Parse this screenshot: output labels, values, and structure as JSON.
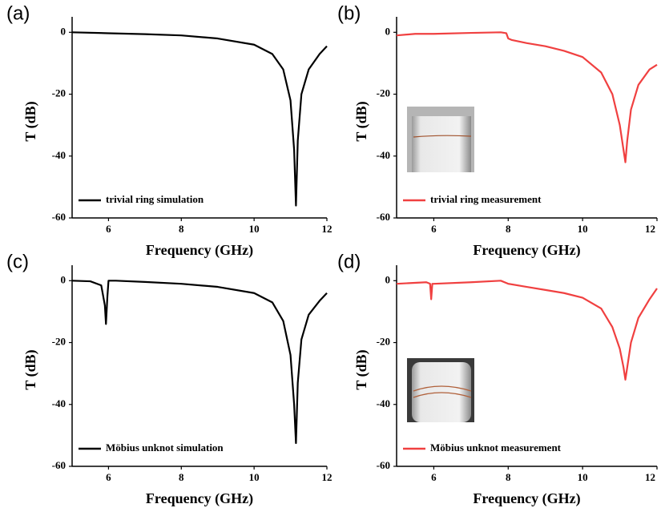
{
  "chart_data": [
    {
      "type": "line",
      "panel_label": "(a)",
      "xlabel": "Frequency (GHz)",
      "ylabel": "T (dB)",
      "xlim": [
        5,
        12
      ],
      "ylim": [
        -60,
        5
      ],
      "xticks": [
        6,
        8,
        10,
        12
      ],
      "yticks": [
        0,
        -20,
        -40,
        -60
      ],
      "x": [
        5,
        6,
        7,
        8,
        9,
        10,
        10.5,
        10.8,
        11.0,
        11.1,
        11.15,
        11.2,
        11.3,
        11.5,
        11.8,
        12
      ],
      "series": [
        {
          "name": "trivial ring simulation",
          "color": "#000000",
          "values": [
            0,
            -0.3,
            -0.6,
            -1.0,
            -2,
            -4,
            -7,
            -12,
            -22,
            -38,
            -56,
            -35,
            -20,
            -12,
            -7,
            -4.5
          ]
        }
      ]
    },
    {
      "type": "line",
      "panel_label": "(b)",
      "xlabel": "Frequency (GHz)",
      "ylabel": "T (dB)",
      "xlim": [
        5,
        12
      ],
      "ylim": [
        -60,
        5
      ],
      "xticks": [
        6,
        8,
        10,
        12
      ],
      "yticks": [
        0,
        -20,
        -40,
        -60
      ],
      "x": [
        5,
        5.5,
        6,
        7,
        7.8,
        7.95,
        8.0,
        8.1,
        8.5,
        9,
        9.5,
        10,
        10.5,
        10.8,
        11,
        11.1,
        11.15,
        11.2,
        11.3,
        11.5,
        11.8,
        12
      ],
      "series": [
        {
          "name": "trivial ring measurement",
          "color": "#f04040",
          "values": [
            -1,
            -0.5,
            -0.5,
            -0.2,
            0,
            -0.3,
            -2,
            -2.5,
            -3.5,
            -4.5,
            -6,
            -8,
            -13,
            -20,
            -30,
            -38,
            -42,
            -35,
            -25,
            -17,
            -12,
            -10.5
          ]
        }
      ]
    },
    {
      "type": "line",
      "panel_label": "(c)",
      "xlabel": "Frequency (GHz)",
      "ylabel": "T (dB)",
      "xlim": [
        5,
        12
      ],
      "ylim": [
        -60,
        5
      ],
      "xticks": [
        6,
        8,
        10,
        12
      ],
      "yticks": [
        0,
        -20,
        -40,
        -60
      ],
      "x": [
        5,
        5.5,
        5.8,
        5.9,
        5.93,
        5.97,
        6.0,
        6.2,
        7,
        8,
        9,
        10,
        10.5,
        10.8,
        11,
        11.1,
        11.15,
        11.2,
        11.3,
        11.5,
        11.8,
        12
      ],
      "series": [
        {
          "name": "Möbius unknot simulation",
          "color": "#000000",
          "values": [
            0,
            -0.2,
            -1.5,
            -8,
            -14,
            -5,
            0,
            0,
            -0.4,
            -1,
            -2,
            -4,
            -7,
            -13,
            -24,
            -40,
            -52.5,
            -33,
            -19,
            -11,
            -6.5,
            -4
          ]
        }
      ]
    },
    {
      "type": "line",
      "panel_label": "(d)",
      "xlabel": "Frequency (GHz)",
      "ylabel": "T (dB)",
      "xlim": [
        5,
        12
      ],
      "ylim": [
        -60,
        5
      ],
      "xticks": [
        6,
        8,
        10,
        12
      ],
      "yticks": [
        0,
        -20,
        -40,
        -60
      ],
      "x": [
        5,
        5.8,
        5.9,
        5.93,
        5.96,
        6,
        7,
        7.8,
        8,
        8.5,
        9,
        9.5,
        10,
        10.5,
        10.8,
        11,
        11.1,
        11.15,
        11.2,
        11.3,
        11.5,
        11.8,
        12
      ],
      "series": [
        {
          "name": "Möbius unknot measurement",
          "color": "#f04040",
          "values": [
            -1,
            -0.5,
            -1,
            -6,
            -1,
            -1,
            -0.5,
            0,
            -1,
            -2,
            -3,
            -4,
            -5.5,
            -9,
            -15,
            -22,
            -28,
            -32,
            -28,
            -20,
            -12,
            -6,
            -2.5
          ]
        }
      ]
    }
  ]
}
